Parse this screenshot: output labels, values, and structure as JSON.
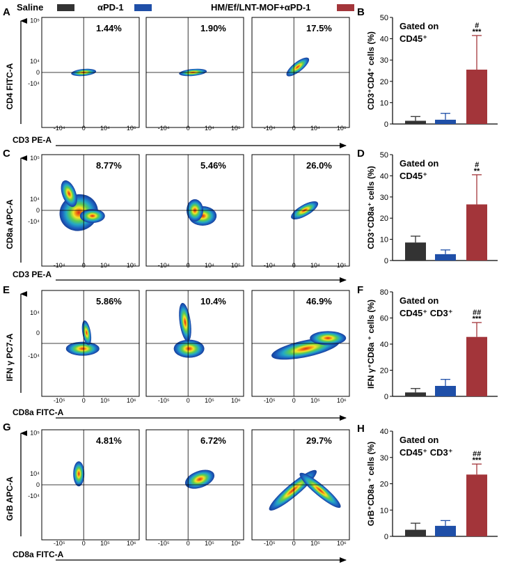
{
  "legend": [
    {
      "label": "Saline",
      "color": "#333333"
    },
    {
      "label": "αPD-1",
      "color": "#1f4fa8"
    },
    {
      "label": "HM/Ef/LNT-MOF+αPD-1",
      "color": "#a3353a"
    }
  ],
  "flow_rows": [
    {
      "panel": "A",
      "y_label": "CD4 FITC-A",
      "x_label": "CD3 PE-A",
      "y_ticks": [
        "10⁵",
        "10⁴",
        "0",
        "-10⁴"
      ],
      "x_ticks": [
        "-10⁴",
        "0",
        "10⁴",
        "10⁵"
      ],
      "percentages": [
        "1.44%",
        "1.90%",
        "17.5%"
      ]
    },
    {
      "panel": "C",
      "y_label": "CD8a APC-A",
      "x_label": "CD3 PE-A",
      "y_ticks": [
        "10⁵",
        "10⁴",
        "0",
        "-10⁴"
      ],
      "x_ticks": [
        "-10⁴",
        "0",
        "10⁴",
        "10⁵"
      ],
      "percentages": [
        "8.77%",
        "5.46%",
        "26.0%"
      ]
    },
    {
      "panel": "E",
      "y_label": "IFN γ PC7-A",
      "x_label": "CD8a FITC-A",
      "y_ticks": [
        "10⁴",
        "0",
        "-10⁴"
      ],
      "x_ticks": [
        "-10⁵",
        "0",
        "10⁵",
        "10⁶"
      ],
      "percentages": [
        "5.86%",
        "10.4%",
        "46.9%"
      ]
    },
    {
      "panel": "G",
      "y_label": "GrB APC-A",
      "x_label": "CD8a FITC-A",
      "y_ticks": [
        "10⁵",
        "10⁴",
        "0",
        "-10⁴"
      ],
      "x_ticks": [
        "-10⁵",
        "0",
        "10⁵",
        "10⁶"
      ],
      "percentages": [
        "4.81%",
        "6.72%",
        "29.7%"
      ]
    }
  ],
  "chart_data": [
    {
      "panel": "B",
      "type": "bar",
      "categories": [
        "Saline",
        "αPD-1",
        "HM/Ef/LNT-MOF+αPD-1"
      ],
      "values": [
        1.5,
        2.0,
        25.5
      ],
      "errors": [
        2.0,
        3.0,
        16.0
      ],
      "ylim": [
        0,
        50
      ],
      "yticks": [
        0,
        10,
        20,
        30,
        40,
        50
      ],
      "ylabel": "CD3⁺CD4⁺ cells (%)",
      "annotation_line1": "Gated on",
      "annotation_line2": "CD45⁺",
      "significance_hash": "#",
      "significance_star": "***"
    },
    {
      "panel": "D",
      "type": "bar",
      "categories": [
        "Saline",
        "αPD-1",
        "HM/Ef/LNT-MOF+αPD-1"
      ],
      "values": [
        8.5,
        3.0,
        26.5
      ],
      "errors": [
        3.0,
        2.0,
        14.0
      ],
      "ylim": [
        0,
        50
      ],
      "yticks": [
        0,
        10,
        20,
        30,
        40,
        50
      ],
      "ylabel": "CD3⁺CD8a⁺ cells (%)",
      "annotation_line1": "Gated on",
      "annotation_line2": "CD45⁺",
      "significance_hash": "#",
      "significance_star": "**"
    },
    {
      "panel": "F",
      "type": "bar",
      "categories": [
        "Saline",
        "αPD-1",
        "HM/Ef/LNT-MOF+αPD-1"
      ],
      "values": [
        3.0,
        8.0,
        45.5
      ],
      "errors": [
        3.0,
        5.0,
        11.0
      ],
      "ylim": [
        0,
        80
      ],
      "yticks": [
        0,
        20,
        40,
        60,
        80
      ],
      "ylabel": "IFN γ⁺CD8a ⁺ cells (%)",
      "annotation_line1": "Gated on",
      "annotation_line2": "CD45⁺ CD3⁺",
      "significance_hash": "##",
      "significance_star": "***"
    },
    {
      "panel": "H",
      "type": "bar",
      "categories": [
        "Saline",
        "αPD-1",
        "HM/Ef/LNT-MOF+αPD-1"
      ],
      "values": [
        2.5,
        4.0,
        23.5
      ],
      "errors": [
        2.5,
        2.0,
        4.0
      ],
      "ylim": [
        0,
        40
      ],
      "yticks": [
        0,
        10,
        20,
        30,
        40
      ],
      "ylabel": "GrB⁺CD8a ⁺ cells (%)",
      "annotation_line1": "Gated on",
      "annotation_line2": "CD45⁺ CD3⁺",
      "significance_hash": "##",
      "significance_star": "***"
    }
  ]
}
